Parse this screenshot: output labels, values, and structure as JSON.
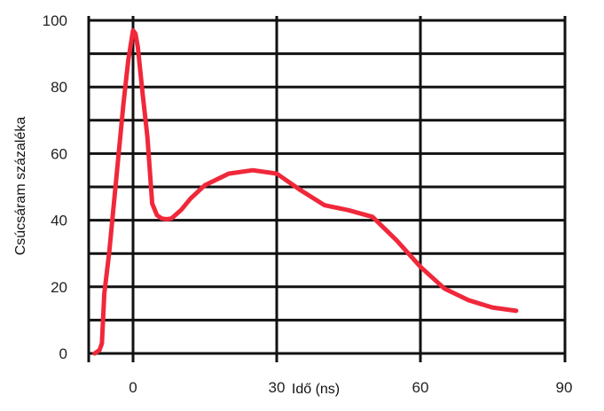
{
  "chart_data": {
    "type": "line",
    "xlabel": "Idő (ns)",
    "ylabel": "Csúcsáram százaléka",
    "xlim": [
      -9,
      90
    ],
    "ylim": [
      0,
      100
    ],
    "x_ticks": [
      "0",
      "30",
      "60",
      "90"
    ],
    "y_ticks": [
      "0",
      "20",
      "40",
      "60",
      "80",
      "100"
    ],
    "grid": true,
    "series": [
      {
        "color": "#f0283a",
        "x": [
          -8,
          -7,
          -6.5,
          -6,
          -5,
          -4,
          -3,
          -2,
          -1,
          0,
          0.5,
          1,
          2,
          3,
          3.5,
          4,
          5,
          6,
          7,
          8,
          10,
          12,
          15,
          20,
          25,
          30,
          35,
          40,
          45,
          50,
          55,
          60,
          65,
          70,
          75,
          80
        ],
        "y": [
          0,
          1,
          3,
          18,
          30,
          45,
          60,
          75,
          88,
          97,
          96,
          92,
          78,
          65,
          55,
          45,
          41.5,
          40.5,
          40.3,
          40.5,
          43,
          46.5,
          50.5,
          54,
          55,
          54,
          49,
          44.5,
          43,
          41,
          34,
          26,
          19.5,
          16,
          13.8,
          12.8
        ]
      }
    ]
  }
}
